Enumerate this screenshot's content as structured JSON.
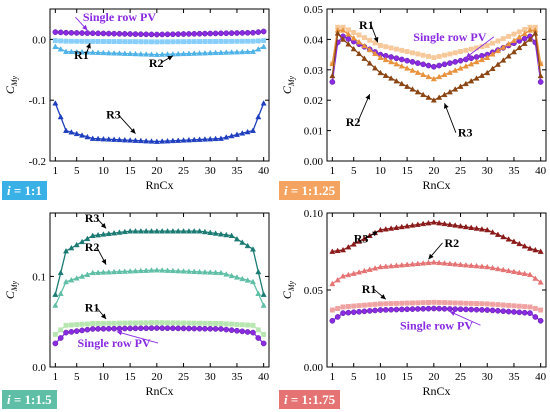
{
  "palette": {
    "single": "#8a2be2",
    "r1_a": "#87cefa",
    "r2_a": "#4fb3e8",
    "r3_a": "#1f3fbf",
    "r1_b": "#f6c89a",
    "r2_b": "#e8923c",
    "r3_b": "#8b4513",
    "r1_c": "#b7e6b0",
    "r2_c": "#5fbfa6",
    "r3_c": "#1b7b73",
    "r1_d": "#f0a2a2",
    "r2_d": "#e57373",
    "r3_d": "#8b1a1a"
  },
  "chart_data": [
    {
      "type": "line",
      "panel_label_i": "i",
      "panel_label_ratio": " = 1:1",
      "label_bg": "#3ab1e6",
      "xlabel": "RnCx",
      "ylabel_main": "C",
      "ylabel_sub": "My",
      "xlim": [
        0,
        41
      ],
      "ylim": [
        -0.2,
        0.05
      ],
      "yticks": [
        0.0,
        -0.1,
        -0.2
      ],
      "ytick_labels": [
        "0.0",
        "-0.1",
        "-0.2"
      ],
      "xticks": [
        1,
        5,
        10,
        15,
        20,
        25,
        30,
        35,
        40
      ],
      "series": [
        {
          "name": "Single row PV",
          "role": "single",
          "anchors": [
            [
              1,
              0.012
            ],
            [
              3,
              0.011
            ],
            [
              20,
              0.008
            ],
            [
              38,
              0.011
            ],
            [
              40,
              0.013
            ]
          ]
        },
        {
          "name": "R1",
          "role": "r1",
          "anchors": [
            [
              1,
              -0.002
            ],
            [
              3,
              -0.003
            ],
            [
              20,
              -0.004
            ],
            [
              38,
              -0.003
            ],
            [
              40,
              -0.002
            ]
          ]
        },
        {
          "name": "R2",
          "role": "r2",
          "anchors": [
            [
              1,
              -0.012
            ],
            [
              3,
              -0.02
            ],
            [
              20,
              -0.025
            ],
            [
              38,
              -0.02
            ],
            [
              40,
              -0.012
            ]
          ]
        },
        {
          "name": "R3",
          "role": "r3",
          "anchors": [
            [
              1,
              -0.105
            ],
            [
              3,
              -0.15
            ],
            [
              8,
              -0.163
            ],
            [
              20,
              -0.168
            ],
            [
              32,
              -0.163
            ],
            [
              38,
              -0.15
            ],
            [
              40,
              -0.105
            ]
          ]
        }
      ],
      "annotations": [
        {
          "text": "Single row PV",
          "color": "single",
          "x": 13,
          "y": 0.03,
          "ax": 7,
          "ay": 0.015
        },
        {
          "text": "R1",
          "color": "black",
          "x": 4.5,
          "y": -0.032,
          "ax": 7.5,
          "ay": -0.006
        },
        {
          "text": "R2",
          "color": "black",
          "x": 18.5,
          "y": -0.045,
          "ax": 23,
          "ay": -0.027
        },
        {
          "text": "R3",
          "color": "black",
          "x": 10.5,
          "y": -0.13,
          "ax": 16,
          "ay": -0.155
        }
      ]
    },
    {
      "type": "line",
      "panel_label_i": "i",
      "panel_label_ratio": " = 1:1.25",
      "label_bg": "#f4a460",
      "xlabel": "RnCx",
      "ylabel_main": "C",
      "ylabel_sub": "My",
      "xlim": [
        0,
        41
      ],
      "ylim": [
        0.0,
        0.05
      ],
      "yticks": [
        0.0,
        0.01,
        0.02,
        0.03,
        0.04,
        0.05
      ],
      "ytick_labels": [
        "0.00",
        "0.01",
        "0.02",
        "0.03",
        "0.04",
        "0.05"
      ],
      "xticks": [
        1,
        5,
        10,
        15,
        20,
        25,
        30,
        35,
        40
      ],
      "series": [
        {
          "name": "Single row PV",
          "role": "single",
          "anchors": [
            [
              1,
              0.026
            ],
            [
              2,
              0.039
            ],
            [
              3,
              0.041
            ],
            [
              10,
              0.035
            ],
            [
              20,
              0.031
            ],
            [
              30,
              0.035
            ],
            [
              38,
              0.041
            ],
            [
              39,
              0.039
            ],
            [
              40,
              0.026
            ]
          ]
        },
        {
          "name": "R1",
          "role": "r1",
          "anchors": [
            [
              1,
              0.032
            ],
            [
              2,
              0.044
            ],
            [
              3,
              0.044
            ],
            [
              10,
              0.038
            ],
            [
              20,
              0.034
            ],
            [
              30,
              0.038
            ],
            [
              38,
              0.044
            ],
            [
              39,
              0.044
            ],
            [
              40,
              0.032
            ]
          ]
        },
        {
          "name": "R2",
          "role": "r2",
          "anchors": [
            [
              1,
              0.032
            ],
            [
              2,
              0.043
            ],
            [
              3,
              0.043
            ],
            [
              10,
              0.034
            ],
            [
              20,
              0.027
            ],
            [
              30,
              0.034
            ],
            [
              38,
              0.043
            ],
            [
              39,
              0.043
            ],
            [
              40,
              0.032
            ]
          ]
        },
        {
          "name": "R3",
          "role": "r3",
          "anchors": [
            [
              1,
              0.028
            ],
            [
              2,
              0.042
            ],
            [
              3,
              0.04
            ],
            [
              10,
              0.029
            ],
            [
              20,
              0.02
            ],
            [
              30,
              0.029
            ],
            [
              38,
              0.04
            ],
            [
              39,
              0.042
            ],
            [
              40,
              0.028
            ]
          ]
        }
      ],
      "annotations": [
        {
          "text": "Single row PV",
          "color": "single",
          "x": 23,
          "y": 0.0395,
          "ax": 26,
          "ay": 0.034
        },
        {
          "text": "R1",
          "color": "black",
          "x": 6,
          "y": 0.0435,
          "ax": 9.5,
          "ay": 0.039
        },
        {
          "text": "R2",
          "color": "black",
          "x": 3.5,
          "y": 0.0115,
          "ax": 8,
          "ay": 0.022
        },
        {
          "text": "R3",
          "color": "black",
          "x": 24.5,
          "y": 0.008,
          "ax": 22,
          "ay": 0.019
        }
      ]
    },
    {
      "type": "line",
      "panel_label_i": "i",
      "panel_label_ratio": " = 1:1.5",
      "label_bg": "#5fbfa6",
      "xlabel": "RnCx",
      "ylabel_main": "C",
      "ylabel_sub": "My",
      "xlim": [
        0,
        41
      ],
      "ylim": [
        0.0,
        0.17
      ],
      "yticks": [
        0.0,
        0.1
      ],
      "ytick_labels": [
        "0.0",
        "0.1"
      ],
      "xticks": [
        1,
        5,
        10,
        15,
        20,
        25,
        30,
        35,
        40
      ],
      "series": [
        {
          "name": "Single row PV",
          "role": "single",
          "anchors": [
            [
              1,
              0.026
            ],
            [
              3,
              0.038
            ],
            [
              8,
              0.042
            ],
            [
              20,
              0.043
            ],
            [
              32,
              0.042
            ],
            [
              38,
              0.038
            ],
            [
              40,
              0.026
            ]
          ]
        },
        {
          "name": "R1",
          "role": "r1",
          "anchors": [
            [
              1,
              0.036
            ],
            [
              3,
              0.046
            ],
            [
              8,
              0.048
            ],
            [
              20,
              0.049
            ],
            [
              32,
              0.048
            ],
            [
              38,
              0.046
            ],
            [
              40,
              0.036
            ]
          ]
        },
        {
          "name": "R2",
          "role": "r2",
          "anchors": [
            [
              1,
              0.068
            ],
            [
              3,
              0.094
            ],
            [
              8,
              0.104
            ],
            [
              20,
              0.107
            ],
            [
              32,
              0.104
            ],
            [
              38,
              0.094
            ],
            [
              40,
              0.068
            ]
          ]
        },
        {
          "name": "R3",
          "role": "r3",
          "anchors": [
            [
              1,
              0.08
            ],
            [
              3,
              0.128
            ],
            [
              8,
              0.145
            ],
            [
              15,
              0.15
            ],
            [
              20,
              0.15
            ],
            [
              28,
              0.15
            ],
            [
              34,
              0.145
            ],
            [
              38,
              0.13
            ],
            [
              40,
              0.08
            ]
          ]
        }
      ],
      "annotations": [
        {
          "text": "Single row PV",
          "color": "single",
          "x": 12,
          "y": 0.022,
          "ax": 12.5,
          "ay": 0.039
        },
        {
          "text": "R1",
          "color": "black",
          "x": 6.5,
          "y": 0.061,
          "ax": 10.5,
          "ay": 0.053
        },
        {
          "text": "R2",
          "color": "black",
          "x": 6.5,
          "y": 0.128,
          "ax": 10.5,
          "ay": 0.113
        },
        {
          "text": "R3",
          "color": "black",
          "x": 6.5,
          "y": 0.16,
          "ax": 10.5,
          "ay": 0.153
        }
      ]
    },
    {
      "type": "line",
      "panel_label_i": "i",
      "panel_label_ratio": " = 1:1.75",
      "label_bg": "#e57373",
      "xlabel": "RnCx",
      "ylabel_main": "C",
      "ylabel_sub": "My",
      "xlim": [
        0,
        41
      ],
      "ylim": [
        0.0,
        0.1
      ],
      "yticks": [
        0.0,
        0.05,
        0.1
      ],
      "ytick_labels": [
        "0.00",
        "0.05",
        "0.10"
      ],
      "xticks": [
        1,
        5,
        10,
        15,
        20,
        25,
        30,
        35,
        40
      ],
      "series": [
        {
          "name": "Single row PV",
          "role": "single",
          "anchors": [
            [
              1,
              0.03
            ],
            [
              3,
              0.035
            ],
            [
              10,
              0.037
            ],
            [
              20,
              0.038
            ],
            [
              30,
              0.037
            ],
            [
              38,
              0.035
            ],
            [
              40,
              0.03
            ]
          ]
        },
        {
          "name": "R1",
          "role": "r1",
          "anchors": [
            [
              1,
              0.037
            ],
            [
              3,
              0.039
            ],
            [
              10,
              0.041
            ],
            [
              20,
              0.042
            ],
            [
              30,
              0.041
            ],
            [
              38,
              0.039
            ],
            [
              40,
              0.037
            ]
          ]
        },
        {
          "name": "R2",
          "role": "r2",
          "anchors": [
            [
              1,
              0.054
            ],
            [
              3,
              0.059
            ],
            [
              10,
              0.065
            ],
            [
              20,
              0.068
            ],
            [
              30,
              0.065
            ],
            [
              38,
              0.06
            ],
            [
              40,
              0.055
            ]
          ]
        },
        {
          "name": "R3",
          "role": "r3",
          "anchors": [
            [
              1,
              0.075
            ],
            [
              3,
              0.076
            ],
            [
              10,
              0.089
            ],
            [
              20,
              0.094
            ],
            [
              30,
              0.089
            ],
            [
              38,
              0.077
            ],
            [
              40,
              0.075
            ]
          ]
        }
      ],
      "annotations": [
        {
          "text": "Single row PV",
          "color": "single",
          "x": 20.5,
          "y": 0.0245,
          "ax": 23,
          "ay": 0.036
        },
        {
          "text": "R1",
          "color": "black",
          "x": 6.5,
          "y": 0.048,
          "ax": 11,
          "ay": 0.044
        },
        {
          "text": "R2",
          "color": "black",
          "x": 22,
          "y": 0.078,
          "ax": 19,
          "ay": 0.07
        },
        {
          "text": "R3",
          "color": "black",
          "x": 5,
          "y": 0.081,
          "ax": 9.5,
          "ay": 0.088
        }
      ]
    }
  ]
}
